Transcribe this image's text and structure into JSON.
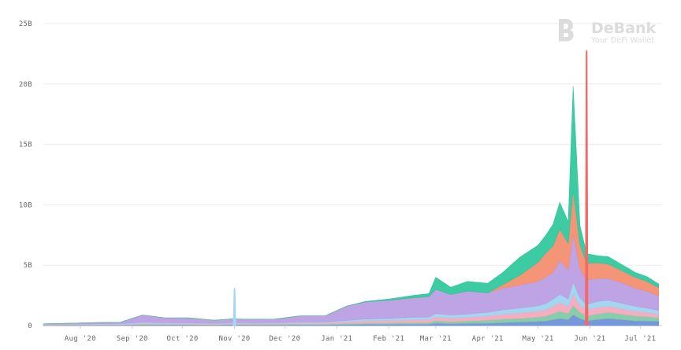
{
  "chart_data": {
    "type": "area",
    "stacked": true,
    "title": "",
    "xlabel": "",
    "ylabel": "",
    "ylim": [
      0,
      25000000000
    ],
    "y_ticks": [
      {
        "value": 0,
        "label": "0"
      },
      {
        "value": 5000000000,
        "label": "5B"
      },
      {
        "value": 10000000000,
        "label": "10B"
      },
      {
        "value": 15000000000,
        "label": "15B"
      },
      {
        "value": 20000000000,
        "label": "20B"
      },
      {
        "value": 25000000000,
        "label": "25B"
      }
    ],
    "x_range": [
      "2020-07-10",
      "2021-07-14"
    ],
    "x_ticks": [
      {
        "value": "2020-08-01",
        "label": "Aug '20"
      },
      {
        "value": "2020-09-01",
        "label": "Sep '20"
      },
      {
        "value": "2020-10-01",
        "label": "Oct '20"
      },
      {
        "value": "2020-11-01",
        "label": "Nov '20"
      },
      {
        "value": "2020-12-01",
        "label": "Dec '20"
      },
      {
        "value": "2021-01-01",
        "label": "Jan '21"
      },
      {
        "value": "2021-02-01",
        "label": "Feb '21"
      },
      {
        "value": "2021-03-01",
        "label": "Mar '21"
      },
      {
        "value": "2021-04-01",
        "label": "Apr '21"
      },
      {
        "value": "2021-05-01",
        "label": "May '21"
      },
      {
        "value": "2021-06-01",
        "label": "Jun '21"
      },
      {
        "value": "2021-07-01",
        "label": "Jul '21"
      }
    ],
    "grid": true,
    "legend": "none",
    "unit_note": "values in billions",
    "x": [
      "2020-07-10",
      "2020-07-25",
      "2020-08-10",
      "2020-08-25",
      "2020-09-07",
      "2020-09-20",
      "2020-10-05",
      "2020-10-20",
      "2020-10-30",
      "2020-11-10",
      "2020-11-25",
      "2020-12-10",
      "2020-12-25",
      "2021-01-07",
      "2021-01-18",
      "2021-02-01",
      "2021-02-15",
      "2021-02-25",
      "2021-03-01",
      "2021-03-10",
      "2021-03-20",
      "2021-04-01",
      "2021-04-10",
      "2021-04-20",
      "2021-05-01",
      "2021-05-06",
      "2021-05-10",
      "2021-05-14",
      "2021-05-19",
      "2021-05-22",
      "2021-05-26",
      "2021-05-30",
      "2021-06-05",
      "2021-06-12",
      "2021-06-20",
      "2021-06-28",
      "2021-07-05",
      "2021-07-12"
    ],
    "series": [
      {
        "color": "#6a8fd8",
        "values": [
          0.02,
          0.03,
          0.03,
          0.04,
          0.05,
          0.05,
          0.05,
          0.04,
          0.06,
          0.05,
          0.05,
          0.06,
          0.06,
          0.08,
          0.1,
          0.1,
          0.12,
          0.12,
          0.2,
          0.15,
          0.18,
          0.2,
          0.25,
          0.3,
          0.35,
          0.4,
          0.5,
          0.6,
          0.5,
          0.9,
          0.6,
          0.4,
          0.5,
          0.6,
          0.5,
          0.4,
          0.4,
          0.35
        ]
      },
      {
        "color": "#7ec9a3",
        "values": [
          0.02,
          0.02,
          0.03,
          0.03,
          0.05,
          0.05,
          0.05,
          0.04,
          0.05,
          0.05,
          0.05,
          0.06,
          0.06,
          0.08,
          0.1,
          0.12,
          0.12,
          0.13,
          0.2,
          0.18,
          0.2,
          0.25,
          0.3,
          0.3,
          0.35,
          0.4,
          0.5,
          0.6,
          0.5,
          0.8,
          0.5,
          0.4,
          0.45,
          0.5,
          0.45,
          0.4,
          0.35,
          0.3
        ]
      },
      {
        "color": "#f4a6bd",
        "values": [
          0.03,
          0.04,
          0.05,
          0.05,
          0.1,
          0.08,
          0.08,
          0.06,
          0.08,
          0.07,
          0.08,
          0.1,
          0.1,
          0.15,
          0.2,
          0.2,
          0.25,
          0.25,
          0.3,
          0.3,
          0.3,
          0.35,
          0.4,
          0.45,
          0.5,
          0.55,
          0.6,
          0.7,
          0.6,
          0.9,
          0.6,
          0.5,
          0.55,
          0.5,
          0.45,
          0.4,
          0.35,
          0.3
        ]
      },
      {
        "color": "#9bd3ee",
        "values": [
          0.02,
          0.03,
          0.04,
          0.04,
          0.08,
          0.07,
          0.06,
          0.05,
          0.06,
          0.06,
          0.06,
          0.08,
          0.08,
          0.12,
          0.15,
          0.18,
          0.2,
          0.2,
          0.3,
          0.25,
          0.28,
          0.3,
          0.35,
          0.4,
          0.45,
          0.5,
          0.6,
          0.7,
          0.6,
          1.0,
          0.6,
          0.45,
          0.5,
          0.5,
          0.45,
          0.4,
          0.35,
          0.3
        ]
      },
      {
        "color": "#b99be3",
        "values": [
          0.05,
          0.07,
          0.1,
          0.12,
          0.6,
          0.4,
          0.4,
          0.25,
          0.3,
          0.3,
          0.3,
          0.5,
          0.5,
          1.2,
          1.4,
          1.5,
          1.6,
          1.7,
          2.0,
          1.7,
          1.9,
          1.6,
          1.8,
          1.9,
          2.0,
          2.2,
          2.2,
          2.8,
          2.4,
          4.0,
          2.4,
          2.0,
          1.9,
          1.8,
          1.7,
          1.5,
          1.4,
          1.2
        ]
      },
      {
        "color": "#f28c6a",
        "values": [
          0,
          0,
          0,
          0,
          0,
          0,
          0,
          0,
          0,
          0,
          0,
          0,
          0,
          0,
          0,
          0,
          0,
          0,
          0,
          0,
          0,
          0,
          0.3,
          0.8,
          1.6,
          2.0,
          2.2,
          2.6,
          2.2,
          3.6,
          2.0,
          1.4,
          1.3,
          1.2,
          1.0,
          0.9,
          0.8,
          0.7
        ]
      },
      {
        "color": "#2bc79a",
        "values": [
          0,
          0,
          0,
          0,
          0,
          0,
          0,
          0,
          0,
          0,
          0,
          0,
          0,
          0,
          0.05,
          0.1,
          0.2,
          0.25,
          1.0,
          0.6,
          0.8,
          0.8,
          1.0,
          1.5,
          1.4,
          1.5,
          1.8,
          2.2,
          1.8,
          8.6,
          1.6,
          0.8,
          0.6,
          0.6,
          0.5,
          0.4,
          0.4,
          0.3
        ]
      }
    ],
    "spikes": [
      {
        "x": "2020-11-01",
        "value": 3.2,
        "width_days": 2,
        "color": "#a5d8f0"
      },
      {
        "x": "2021-05-30",
        "value": 22.9,
        "width_days": 2,
        "color": "#f06a6a"
      }
    ]
  },
  "watermark": {
    "brand": "DeBank",
    "tagline": "Your DeFi Wallet",
    "icon": "debank-logo-icon"
  }
}
